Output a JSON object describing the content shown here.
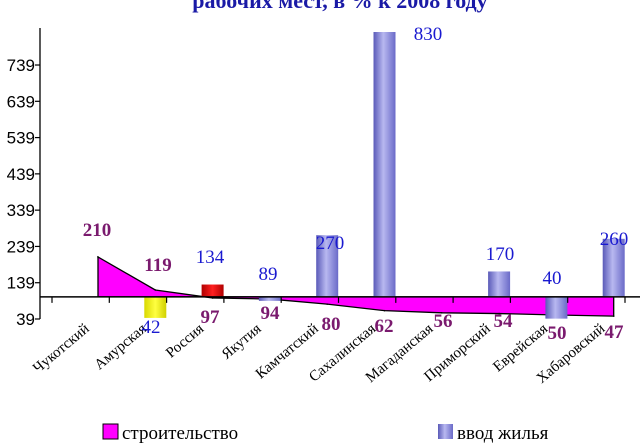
{
  "chart_data": {
    "type": "bar",
    "title": "рабочих мест, в % к 2008 году",
    "categories": [
      "Чукотский",
      "Амурская",
      "Россия",
      "Якутия",
      "Камчатский",
      "Сахалинская",
      "Магаданская",
      "Приморский",
      "Еврейская",
      "Хабаровский"
    ],
    "y_ticks": [
      "39",
      "139",
      "239",
      "339",
      "439",
      "539",
      "639",
      "739"
    ],
    "ylim": [
      39,
      830
    ],
    "baseline": 100,
    "series": [
      {
        "name": "строительство",
        "render": "area",
        "values": [
          210,
          119,
          97,
          94,
          80,
          62,
          56,
          54,
          50,
          47
        ],
        "labels": [
          "210",
          "119",
          "97",
          "94",
          "80",
          "62",
          "56",
          "54",
          "50",
          "47"
        ]
      },
      {
        "name": "ввод жилья",
        "render": "bar",
        "values": [
          null,
          42,
          134,
          89,
          270,
          830,
          null,
          170,
          40,
          260
        ],
        "labels": [
          "",
          "42",
          "134",
          "89",
          "270",
          "830",
          "",
          "170",
          "40",
          "260"
        ]
      }
    ],
    "colors": {
      "area_fill": "#ff00ff",
      "bar_default": "#8c8cd8",
      "bar_amurskaya": "#ffff00",
      "bar_russia": "#e60000",
      "axis": "#000000"
    },
    "legend": {
      "placement": "bottom"
    }
  }
}
